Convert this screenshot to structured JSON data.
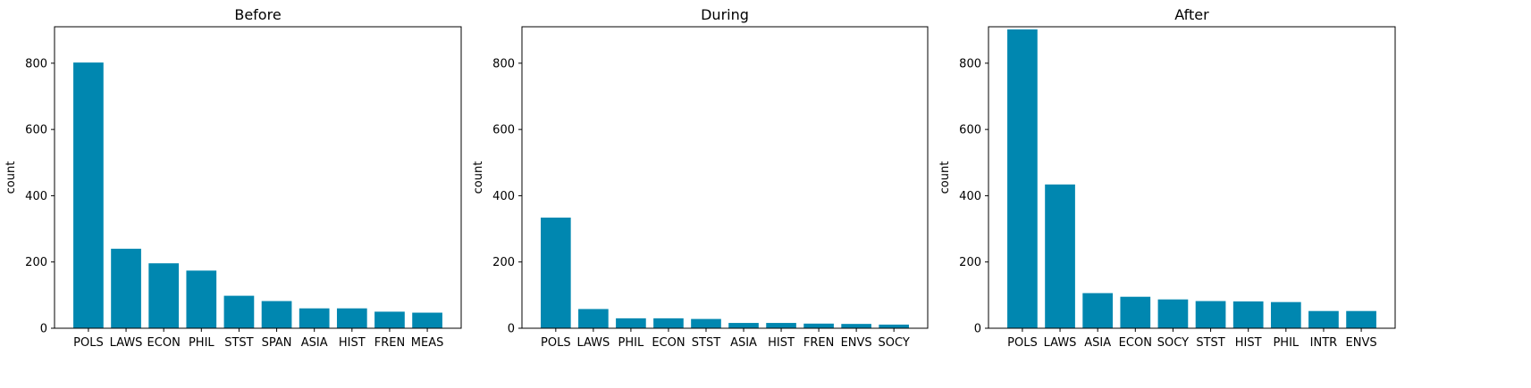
{
  "chart_data": [
    {
      "type": "bar",
      "title": "Before",
      "ylabel": "count",
      "xlabel": "",
      "ylim": [
        0,
        910
      ],
      "yticks": [
        0,
        200,
        400,
        600,
        800
      ],
      "color": "#0087b0",
      "categories": [
        "POLS",
        "LAWS",
        "ECON",
        "PHIL",
        "STST",
        "SPAN",
        "ASIA",
        "HIST",
        "FREN",
        "MEAS"
      ],
      "values": [
        802,
        240,
        196,
        174,
        98,
        82,
        60,
        60,
        50,
        47
      ]
    },
    {
      "type": "bar",
      "title": "During",
      "ylabel": "count",
      "xlabel": "",
      "ylim": [
        0,
        910
      ],
      "yticks": [
        0,
        200,
        400,
        600,
        800
      ],
      "color": "#0087b0",
      "categories": [
        "POLS",
        "LAWS",
        "PHIL",
        "ECON",
        "STST",
        "ASIA",
        "HIST",
        "FREN",
        "ENVS",
        "SOCY"
      ],
      "values": [
        334,
        58,
        30,
        30,
        28,
        16,
        16,
        14,
        13,
        11
      ]
    },
    {
      "type": "bar",
      "title": "After",
      "ylabel": "count",
      "xlabel": "",
      "ylim": [
        0,
        910
      ],
      "yticks": [
        0,
        200,
        400,
        600,
        800
      ],
      "color": "#0087b0",
      "categories": [
        "POLS",
        "LAWS",
        "ASIA",
        "ECON",
        "SOCY",
        "STST",
        "HIST",
        "PHIL",
        "INTR",
        "ENVS"
      ],
      "values": [
        902,
        434,
        106,
        95,
        87,
        82,
        81,
        79,
        52,
        52
      ]
    }
  ]
}
